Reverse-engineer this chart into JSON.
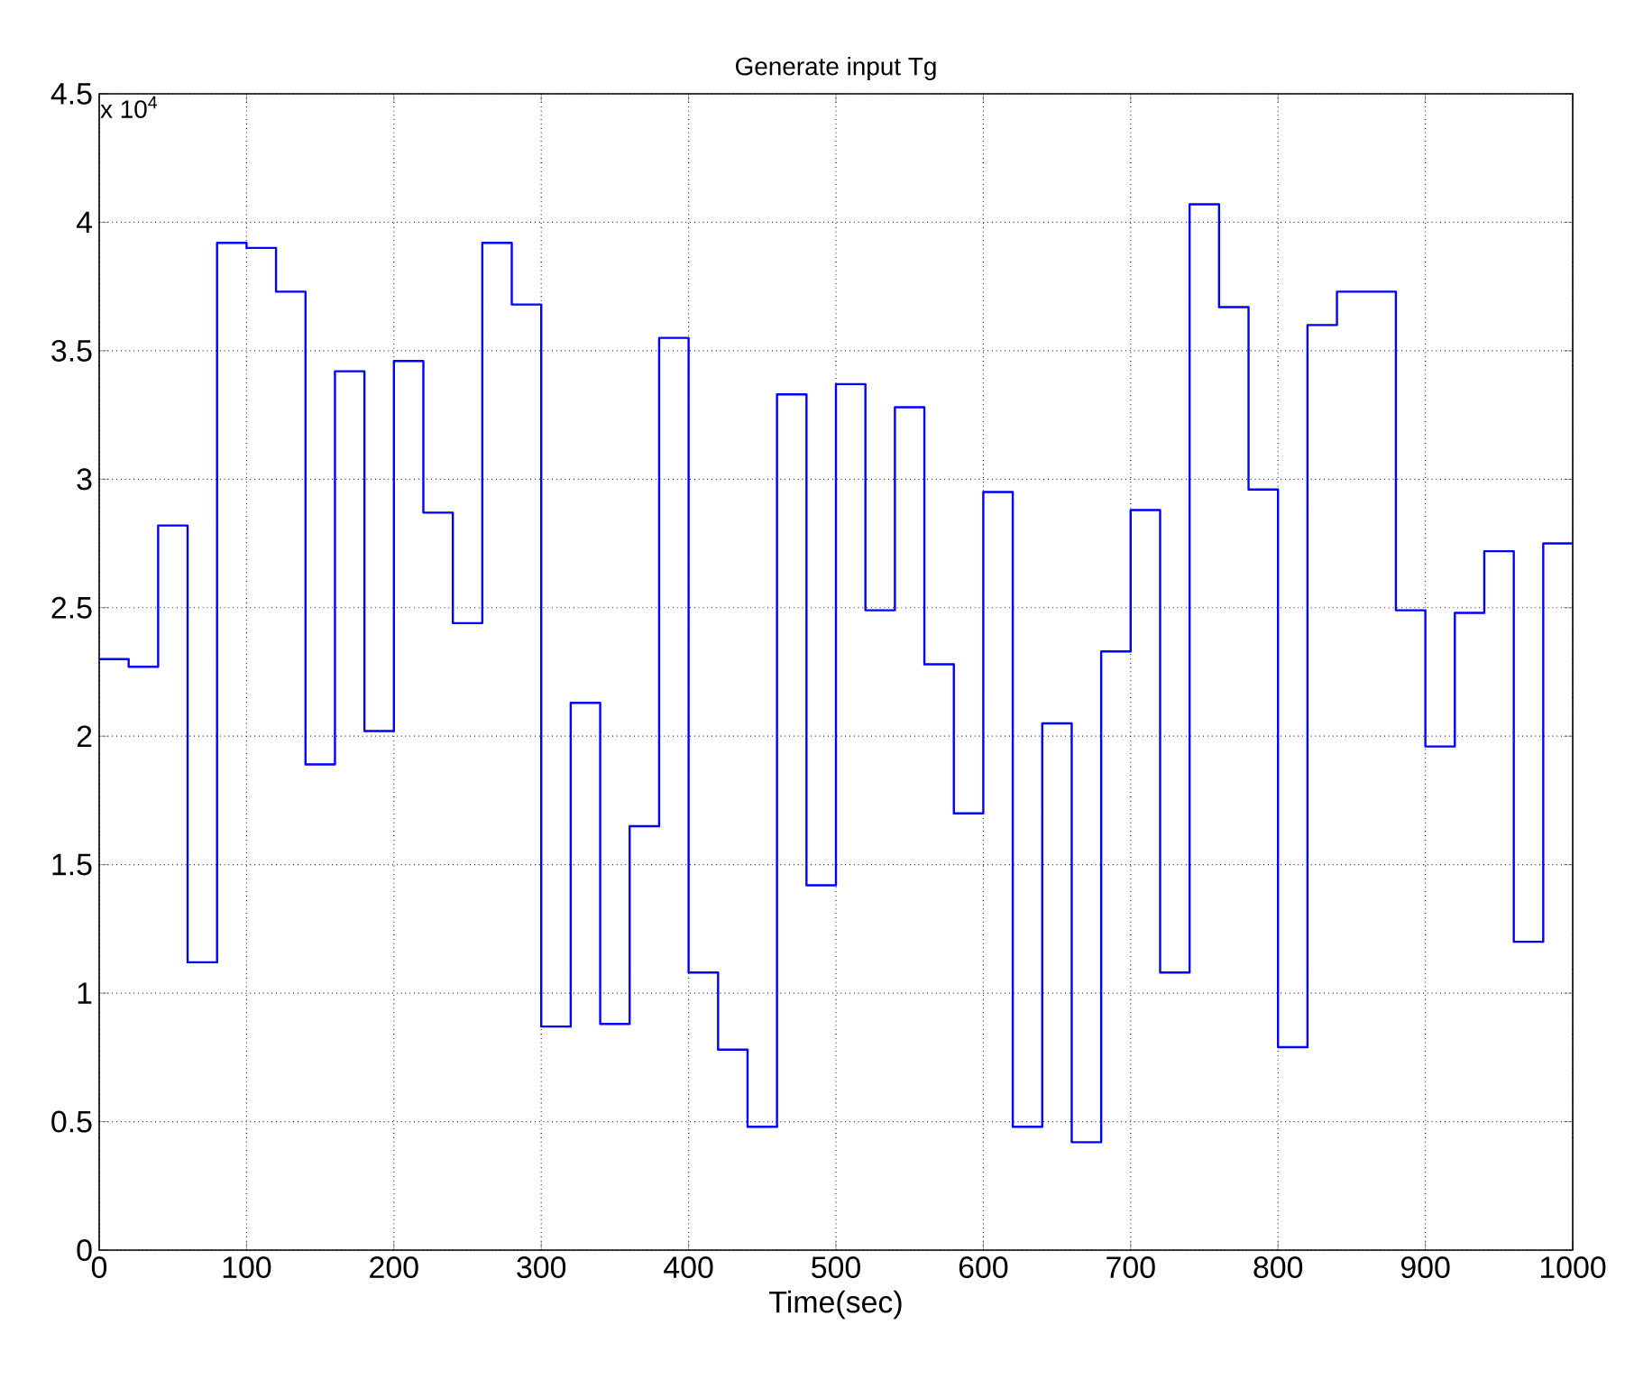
{
  "chart_data": {
    "type": "step",
    "title": "Generate input Tg",
    "xlabel": "Time(sec)",
    "annotations": [
      "x 10$^{4}$"
    ],
    "x": [
      0,
      20,
      40,
      60,
      80,
      100,
      120,
      140,
      160,
      180,
      200,
      220,
      240,
      260,
      280,
      300,
      320,
      340,
      360,
      380,
      400,
      420,
      440,
      460,
      480,
      500,
      520,
      540,
      560,
      580,
      600,
      620,
      640,
      660,
      680,
      700,
      720,
      740,
      760,
      780,
      800,
      820,
      840,
      860,
      880,
      900,
      920,
      940,
      960,
      980,
      1000
    ],
    "series": [
      {
        "color": "#0000ff",
        "values": [
          2.3,
          2.27,
          2.82,
          1.12,
          3.92,
          3.9,
          3.73,
          1.89,
          3.42,
          2.02,
          3.46,
          2.87,
          2.44,
          3.92,
          3.68,
          0.87,
          2.13,
          0.88,
          1.65,
          3.55,
          1.08,
          0.78,
          0.48,
          3.33,
          1.42,
          3.37,
          2.49,
          3.28,
          2.28,
          1.7,
          2.95,
          0.48,
          2.05,
          0.42,
          2.33,
          2.88,
          1.08,
          4.07,
          3.67,
          2.96,
          0.79,
          3.6,
          3.73,
          3.73,
          2.49,
          1.96,
          2.48,
          2.72,
          1.2,
          2.75,
          2.75
        ]
      }
    ],
    "xlim": [
      0,
      1000
    ],
    "xticks": [
      0,
      100,
      200,
      300,
      400,
      500,
      600,
      700,
      800,
      900,
      1000
    ],
    "ylim": [
      0,
      4.5
    ],
    "yticks": [
      0,
      0.5,
      1,
      1.5,
      2,
      2.5,
      3,
      3.5,
      4,
      4.5
    ],
    "grid": true,
    "line_style": "solid",
    "marker": "none"
  }
}
